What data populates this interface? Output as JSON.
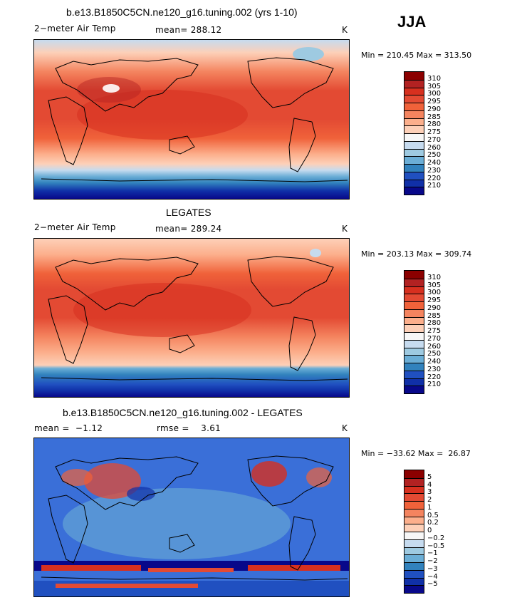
{
  "season": "JJA",
  "chart_data": [
    {
      "type": "heatmap",
      "title": "b.e13.B1850C5CN.ne120_g16.tuning.002 (yrs 1-10)",
      "left_label": "2−meter Air Temp",
      "center_label": "mean= 288.12",
      "right_label": "K",
      "minmax": "Min = 210.45 Max = 313.50",
      "min": 210.45,
      "max": 313.5,
      "mean": 288.12,
      "units": "K",
      "colorbar_levels": [
        "310",
        "305",
        "300",
        "295",
        "290",
        "285",
        "280",
        "275",
        "270",
        "260",
        "250",
        "240",
        "230",
        "220",
        "210"
      ],
      "colorbar_colors": [
        "#8b0000",
        "#b22222",
        "#d7301f",
        "#e34a33",
        "#f0623a",
        "#f4845f",
        "#fcaf8c",
        "#fdd0b8",
        "#f7f7f7",
        "#c6dbef",
        "#9ecae1",
        "#6baed6",
        "#3182bd",
        "#2050c0",
        "#1030a8",
        "#08088a"
      ]
    },
    {
      "type": "heatmap",
      "title": "LEGATES",
      "left_label": "2−meter Air Temp",
      "center_label": "mean= 289.24",
      "right_label": "K",
      "minmax": "Min = 203.13 Max = 309.74",
      "min": 203.13,
      "max": 309.74,
      "mean": 289.24,
      "units": "K",
      "colorbar_levels": [
        "310",
        "305",
        "300",
        "295",
        "290",
        "285",
        "280",
        "275",
        "270",
        "260",
        "250",
        "240",
        "230",
        "220",
        "210"
      ],
      "colorbar_colors": [
        "#8b0000",
        "#b22222",
        "#d7301f",
        "#e34a33",
        "#f0623a",
        "#f4845f",
        "#fcaf8c",
        "#fdd0b8",
        "#f7f7f7",
        "#c6dbef",
        "#9ecae1",
        "#6baed6",
        "#3182bd",
        "#2050c0",
        "#1030a8",
        "#08088a"
      ]
    },
    {
      "type": "heatmap",
      "title": "b.e13.B1850C5CN.ne120_g16.tuning.002 - LEGATES",
      "left_label": "mean =  −1.12",
      "center_label": "rmse =    3.61",
      "right_label": "K",
      "minmax": "Min = −33.62 Max =  26.87",
      "min": -33.62,
      "max": 26.87,
      "mean": -1.12,
      "rmse": 3.61,
      "units": "K",
      "colorbar_levels": [
        "5",
        "4",
        "3",
        "2",
        "1",
        "0.5",
        "0.2",
        "0",
        "−0.2",
        "−0.5",
        "−1",
        "−2",
        "−3",
        "−4",
        "−5"
      ],
      "colorbar_colors": [
        "#8b0000",
        "#b22222",
        "#d7301f",
        "#e34a33",
        "#f0623a",
        "#f4845f",
        "#fcaf8c",
        "#fdd0b8",
        "#f7f7f7",
        "#c6dbef",
        "#9ecae1",
        "#6baed6",
        "#3182bd",
        "#2050c0",
        "#1030a8",
        "#08088a"
      ]
    }
  ]
}
